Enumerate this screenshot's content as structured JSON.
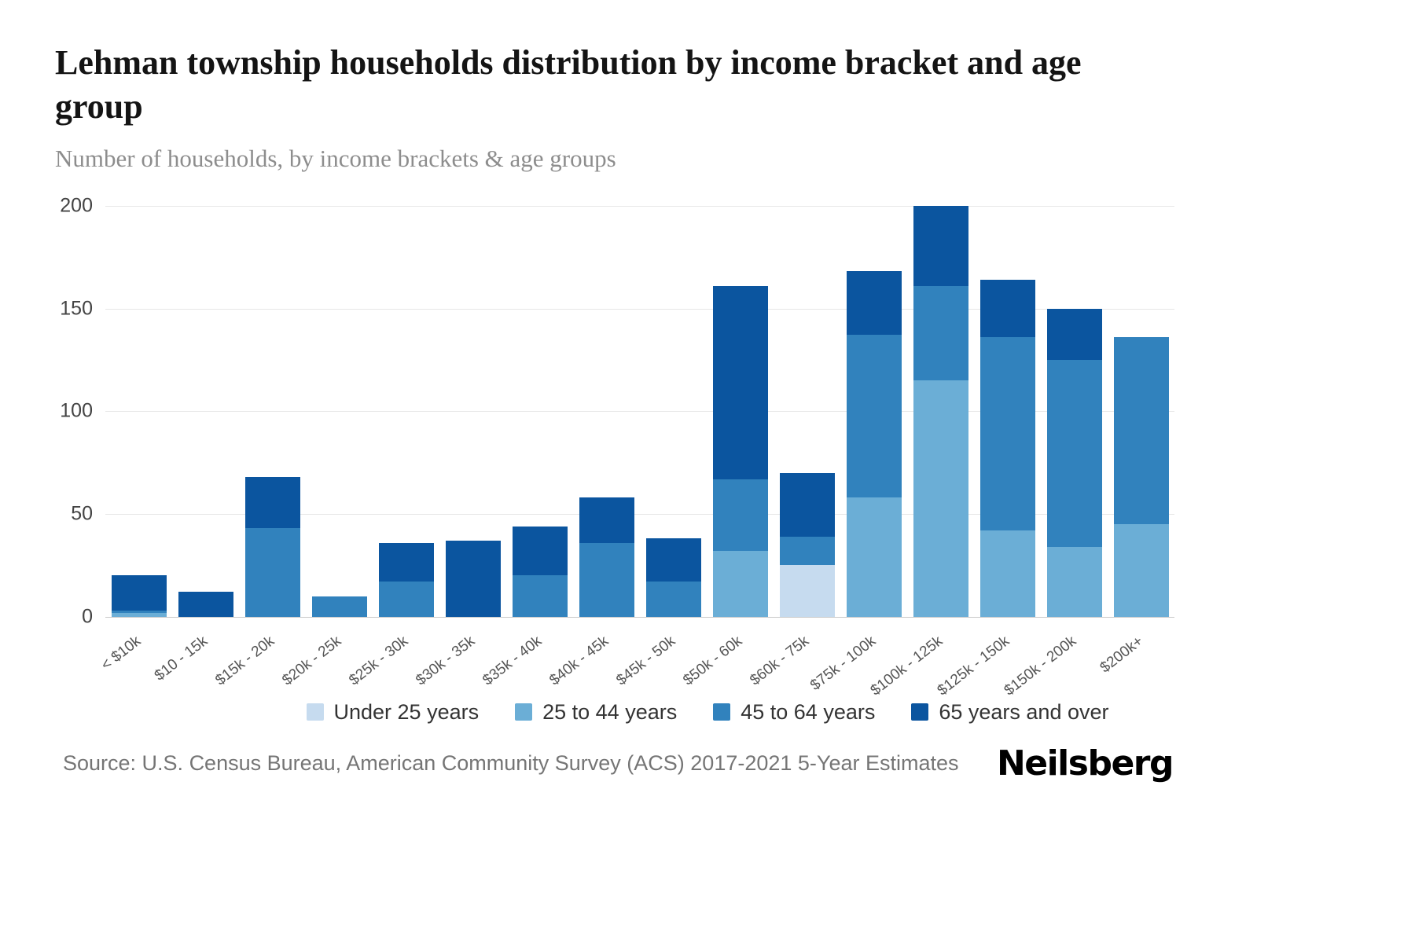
{
  "footer": {
    "source": "Source: U.S. Census Bureau, American Community Survey (ACS) 2017-2021 5-Year Estimates",
    "brand": "Neilsberg"
  },
  "chart_data": {
    "type": "bar",
    "stacked": true,
    "title": "Lehman township households distribution by income bracket and age group",
    "subtitle": "Number of households, by income brackets & age groups",
    "categories": [
      "< $10k",
      "$10 - 15k",
      "$15k - 20k",
      "$20k - 25k",
      "$25k - 30k",
      "$30k - 35k",
      "$35k - 40k",
      "$40k - 45k",
      "$45k - 50k",
      "$50k - 60k",
      "$60k - 75k",
      "$75k - 100k",
      "$100k - 125k",
      "$125k - 150k",
      "$150k - 200k",
      "$200k+"
    ],
    "series": [
      {
        "name": "Under 25 years",
        "color": "#c6dbef",
        "values": [
          0,
          0,
          0,
          0,
          0,
          0,
          0,
          0,
          0,
          0,
          25,
          0,
          0,
          0,
          0,
          0
        ]
      },
      {
        "name": "25 to 44 years",
        "color": "#6baed6",
        "values": [
          2,
          0,
          0,
          0,
          0,
          0,
          0,
          0,
          0,
          32,
          0,
          58,
          115,
          42,
          34,
          45
        ]
      },
      {
        "name": "45 to 64 years",
        "color": "#3182bd",
        "values": [
          1,
          0,
          43,
          10,
          17,
          0,
          20,
          36,
          17,
          35,
          14,
          79,
          46,
          94,
          91,
          91
        ]
      },
      {
        "name": "65 years and over",
        "color": "#0b559f",
        "values": [
          17,
          12,
          25,
          0,
          19,
          37,
          24,
          22,
          21,
          94,
          31,
          31,
          39,
          28,
          25,
          0
        ]
      }
    ],
    "totals": [
      20,
      12,
      68,
      10,
      36,
      37,
      44,
      58,
      38,
      161,
      70,
      168,
      200,
      164,
      150,
      136
    ],
    "xlabel": "",
    "ylabel": "",
    "ylim": [
      0,
      200
    ],
    "yticks": [
      0,
      50,
      100,
      150,
      200
    ],
    "grid": true,
    "legend_position": "bottom"
  }
}
